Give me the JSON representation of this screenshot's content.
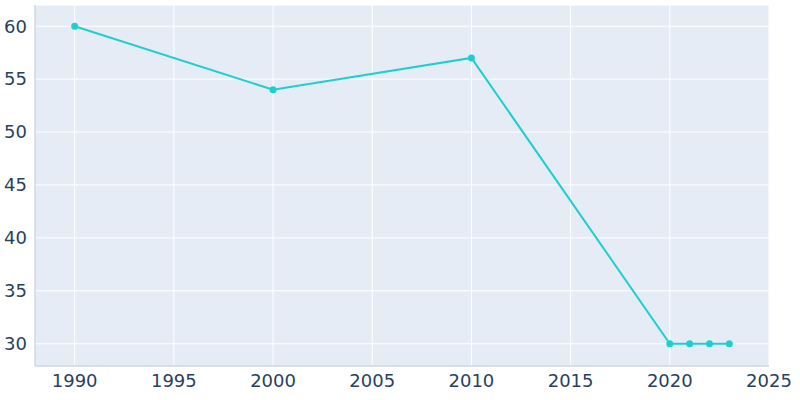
{
  "chart_data": {
    "type": "line",
    "x": [
      1990,
      2000,
      2010,
      2020,
      2021,
      2022,
      2023
    ],
    "values": [
      60,
      54,
      57,
      30,
      30,
      30,
      30
    ],
    "color": "#1fcfcf",
    "marker": "circle",
    "xlim": [
      1988,
      2025
    ],
    "xticks": [
      1990,
      1995,
      2000,
      2005,
      2010,
      2015,
      2020,
      2025
    ],
    "ylim": [
      27.9,
      62
    ],
    "yticks": [
      30,
      35,
      40,
      45,
      50,
      55,
      60
    ],
    "grid": true
  }
}
